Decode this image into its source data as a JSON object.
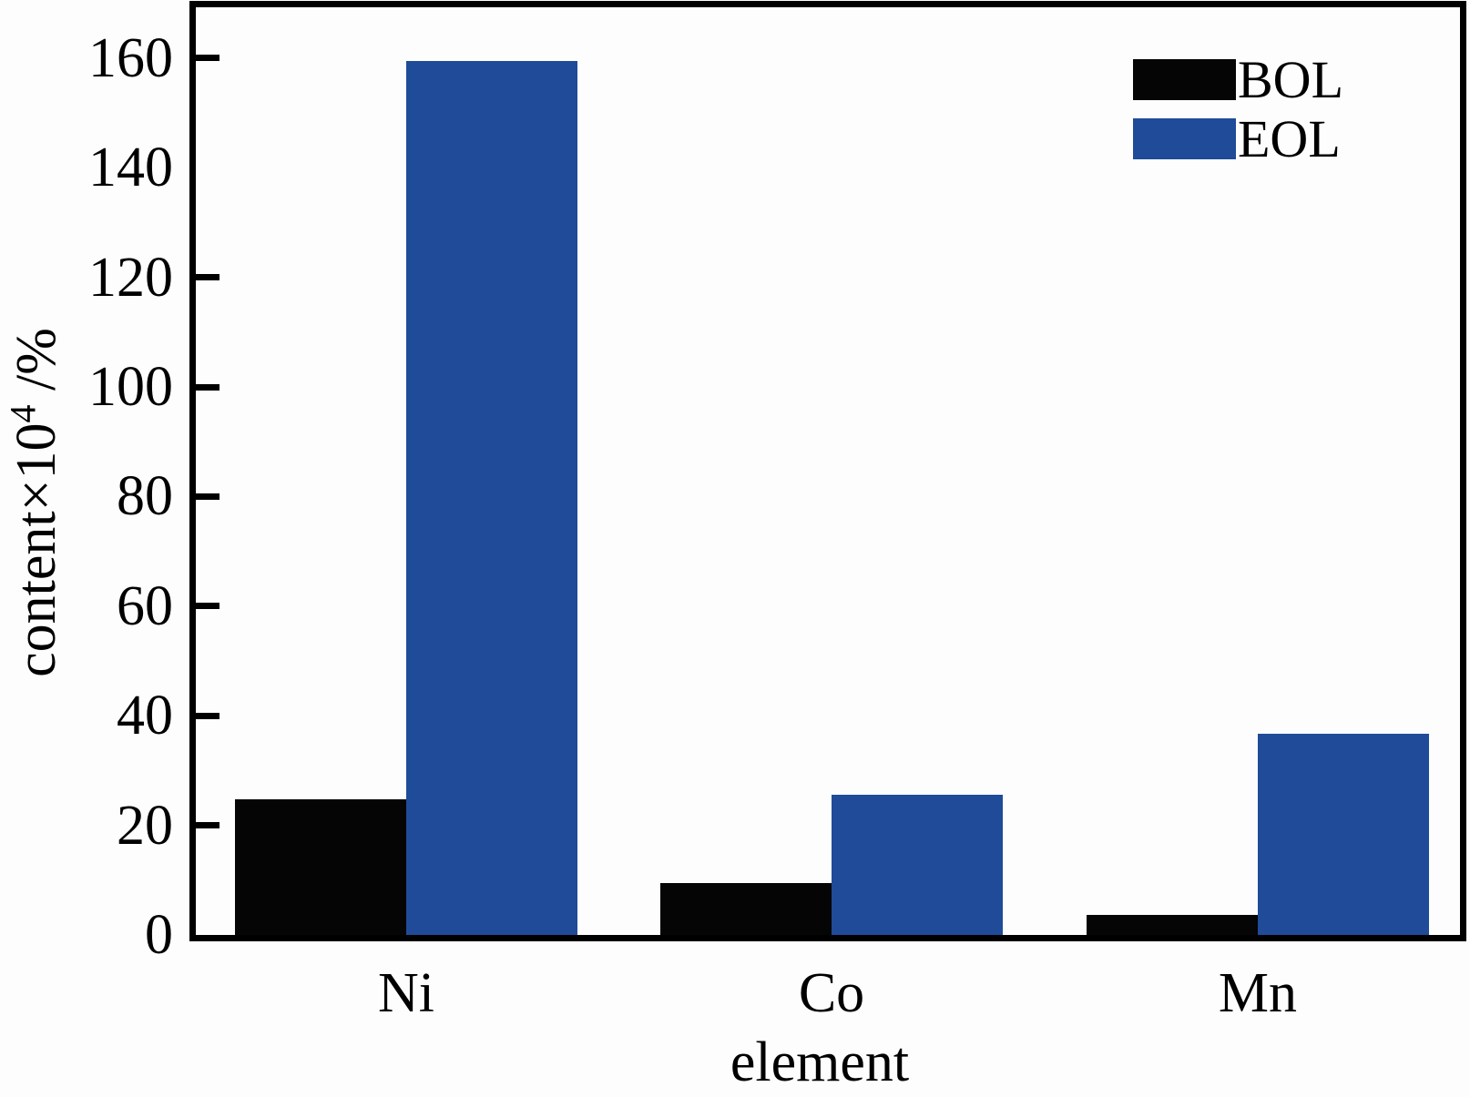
{
  "chart_data": {
    "type": "bar",
    "title": "",
    "categories": [
      "Ni",
      "Co",
      "Mn"
    ],
    "series": [
      {
        "name": "BOL",
        "color": "#050505",
        "values": [
          24.7,
          9.5,
          3.6
        ]
      },
      {
        "name": "EOL",
        "color": "#1f4b99",
        "values": [
          159.4,
          25.5,
          36.7
        ]
      }
    ],
    "xlabel": "element",
    "ylabel": "content×10⁴ /%",
    "ylabel_parts": {
      "base": "content×10",
      "sup": "4",
      "suffix": " /%"
    },
    "ylim": [
      0,
      169.3
    ],
    "y_tick_labels": [
      160,
      140,
      120,
      100,
      80,
      60,
      40,
      20,
      0
    ],
    "y_tick_marks": [
      160,
      120,
      100,
      80,
      60,
      40,
      20
    ],
    "grid": false,
    "legend": {
      "position": "top-right",
      "entries": [
        "BOL",
        "EOL"
      ]
    }
  },
  "legend": {
    "items": [
      {
        "label": "BOL",
        "color": "#050505"
      },
      {
        "label": "EOL",
        "color": "#1f4b99"
      }
    ]
  }
}
